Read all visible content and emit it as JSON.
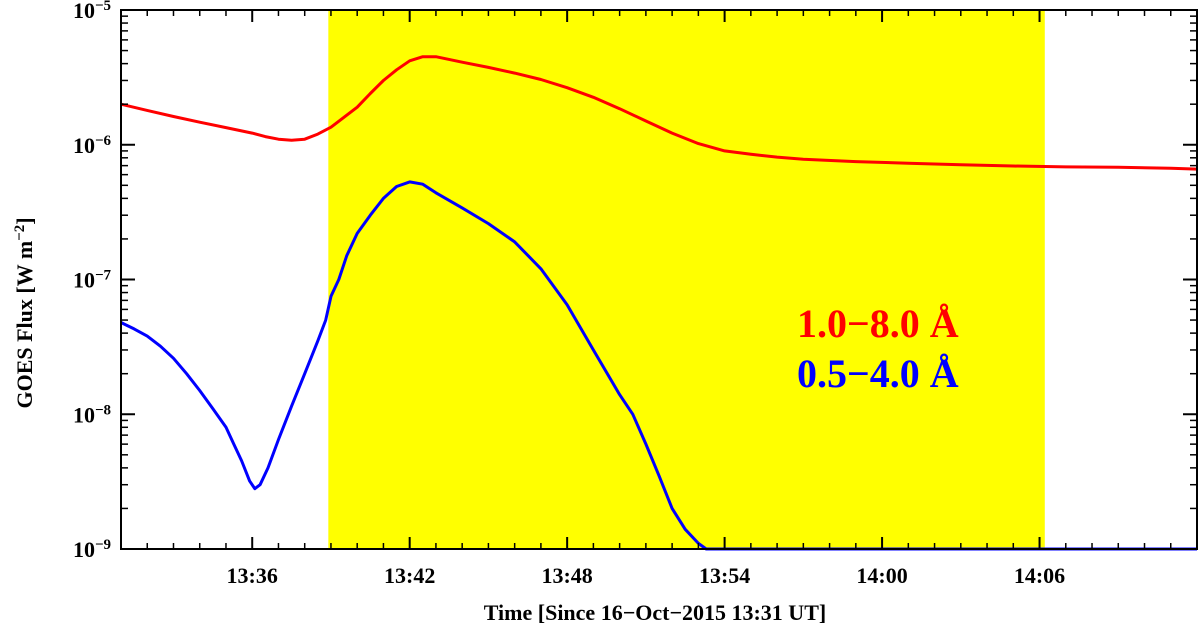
{
  "chart_data": {
    "type": "line",
    "xlabel": "Time [Since 16−Oct−2015 13:31 UT]",
    "ylabel": "GOES Flux [W m",
    "ylabel_sup": "−2",
    "ylabel_end": "]",
    "xlim": [
      0,
      41
    ],
    "ylim": [
      1e-09,
      1e-05
    ],
    "y_scale": "log",
    "x_ticks": [
      {
        "value": 5,
        "label": "13:36"
      },
      {
        "value": 11,
        "label": "13:42"
      },
      {
        "value": 17,
        "label": "13:48"
      },
      {
        "value": 23,
        "label": "13:54"
      },
      {
        "value": 29,
        "label": "14:00"
      },
      {
        "value": 35,
        "label": "14:06"
      }
    ],
    "y_ticks": [
      {
        "value": 1e-09,
        "base": "10",
        "exp": "−9"
      },
      {
        "value": 1e-08,
        "base": "10",
        "exp": "−8"
      },
      {
        "value": 1e-07,
        "base": "10",
        "exp": "−7"
      },
      {
        "value": 1e-06,
        "base": "10",
        "exp": "−6"
      },
      {
        "value": 1e-05,
        "base": "10",
        "exp": "−5"
      }
    ],
    "highlight": {
      "x_start": 7.9,
      "x_end": 35.2,
      "color": "#ffff00"
    },
    "series": [
      {
        "name": "1.0−8.0 Å",
        "color": "#ff0000",
        "x": [
          0,
          1,
          2,
          3,
          4,
          5,
          5.5,
          6,
          6.5,
          7,
          7.5,
          8,
          8.5,
          9,
          9.5,
          10,
          10.5,
          11,
          11.5,
          12,
          13,
          14,
          15,
          16,
          17,
          18,
          19,
          20,
          21,
          22,
          23,
          24,
          25,
          26,
          28,
          30,
          32,
          34,
          36,
          38,
          40,
          41
        ],
        "y": [
          2e-06,
          1.8e-06,
          1.62e-06,
          1.47e-06,
          1.34e-06,
          1.22e-06,
          1.15e-06,
          1.1e-06,
          1.08e-06,
          1.1e-06,
          1.2e-06,
          1.35e-06,
          1.6e-06,
          1.9e-06,
          2.4e-06,
          3e-06,
          3.6e-06,
          4.2e-06,
          4.5e-06,
          4.5e-06,
          4.1e-06,
          3.75e-06,
          3.4e-06,
          3.05e-06,
          2.65e-06,
          2.25e-06,
          1.85e-06,
          1.5e-06,
          1.22e-06,
          1.02e-06,
          9e-07,
          8.5e-07,
          8.1e-07,
          7.8e-07,
          7.5e-07,
          7.3e-07,
          7.1e-07,
          6.95e-07,
          6.85e-07,
          6.8e-07,
          6.7e-07,
          6.6e-07
        ]
      },
      {
        "name": "0.5−4.0 Å",
        "color": "#0000ff",
        "x": [
          0,
          0.5,
          1,
          1.5,
          2,
          2.5,
          3,
          3.5,
          4,
          4.3,
          4.6,
          4.9,
          5.1,
          5.3,
          5.6,
          6,
          6.5,
          7,
          7.5,
          7.8,
          8,
          8.3,
          8.6,
          9,
          9.5,
          10,
          10.5,
          11,
          11.5,
          12,
          13,
          14,
          15,
          16,
          17,
          18,
          19,
          19.5,
          20,
          20.5,
          21,
          21.5,
          22,
          22.3,
          22.6,
          23
        ],
        "y": [
          4.8e-08,
          4.3e-08,
          3.8e-08,
          3.2e-08,
          2.6e-08,
          2e-08,
          1.5e-08,
          1.1e-08,
          8e-09,
          6e-09,
          4.5e-09,
          3.2e-09,
          2.8e-09,
          3e-09,
          4e-09,
          6.5e-09,
          1.15e-08,
          2e-08,
          3.5e-08,
          5e-08,
          7.5e-08,
          1e-07,
          1.5e-07,
          2.2e-07,
          3e-07,
          4e-07,
          4.9e-07,
          5.3e-07,
          5.1e-07,
          4.4e-07,
          3.4e-07,
          2.6e-07,
          1.9e-07,
          1.2e-07,
          6.5e-08,
          3e-08,
          1.4e-08,
          1e-08,
          6e-09,
          3.5e-09,
          2e-09,
          1.4e-09,
          1.1e-09,
          1e-09,
          1e-09,
          1e-09
        ]
      }
    ],
    "legend": [
      {
        "text": "1.0−8.0 Å",
        "color": "#ff0000"
      },
      {
        "text": "0.5−4.0 Å",
        "color": "#0000ff"
      }
    ],
    "legend_position": "right",
    "grid": false
  }
}
